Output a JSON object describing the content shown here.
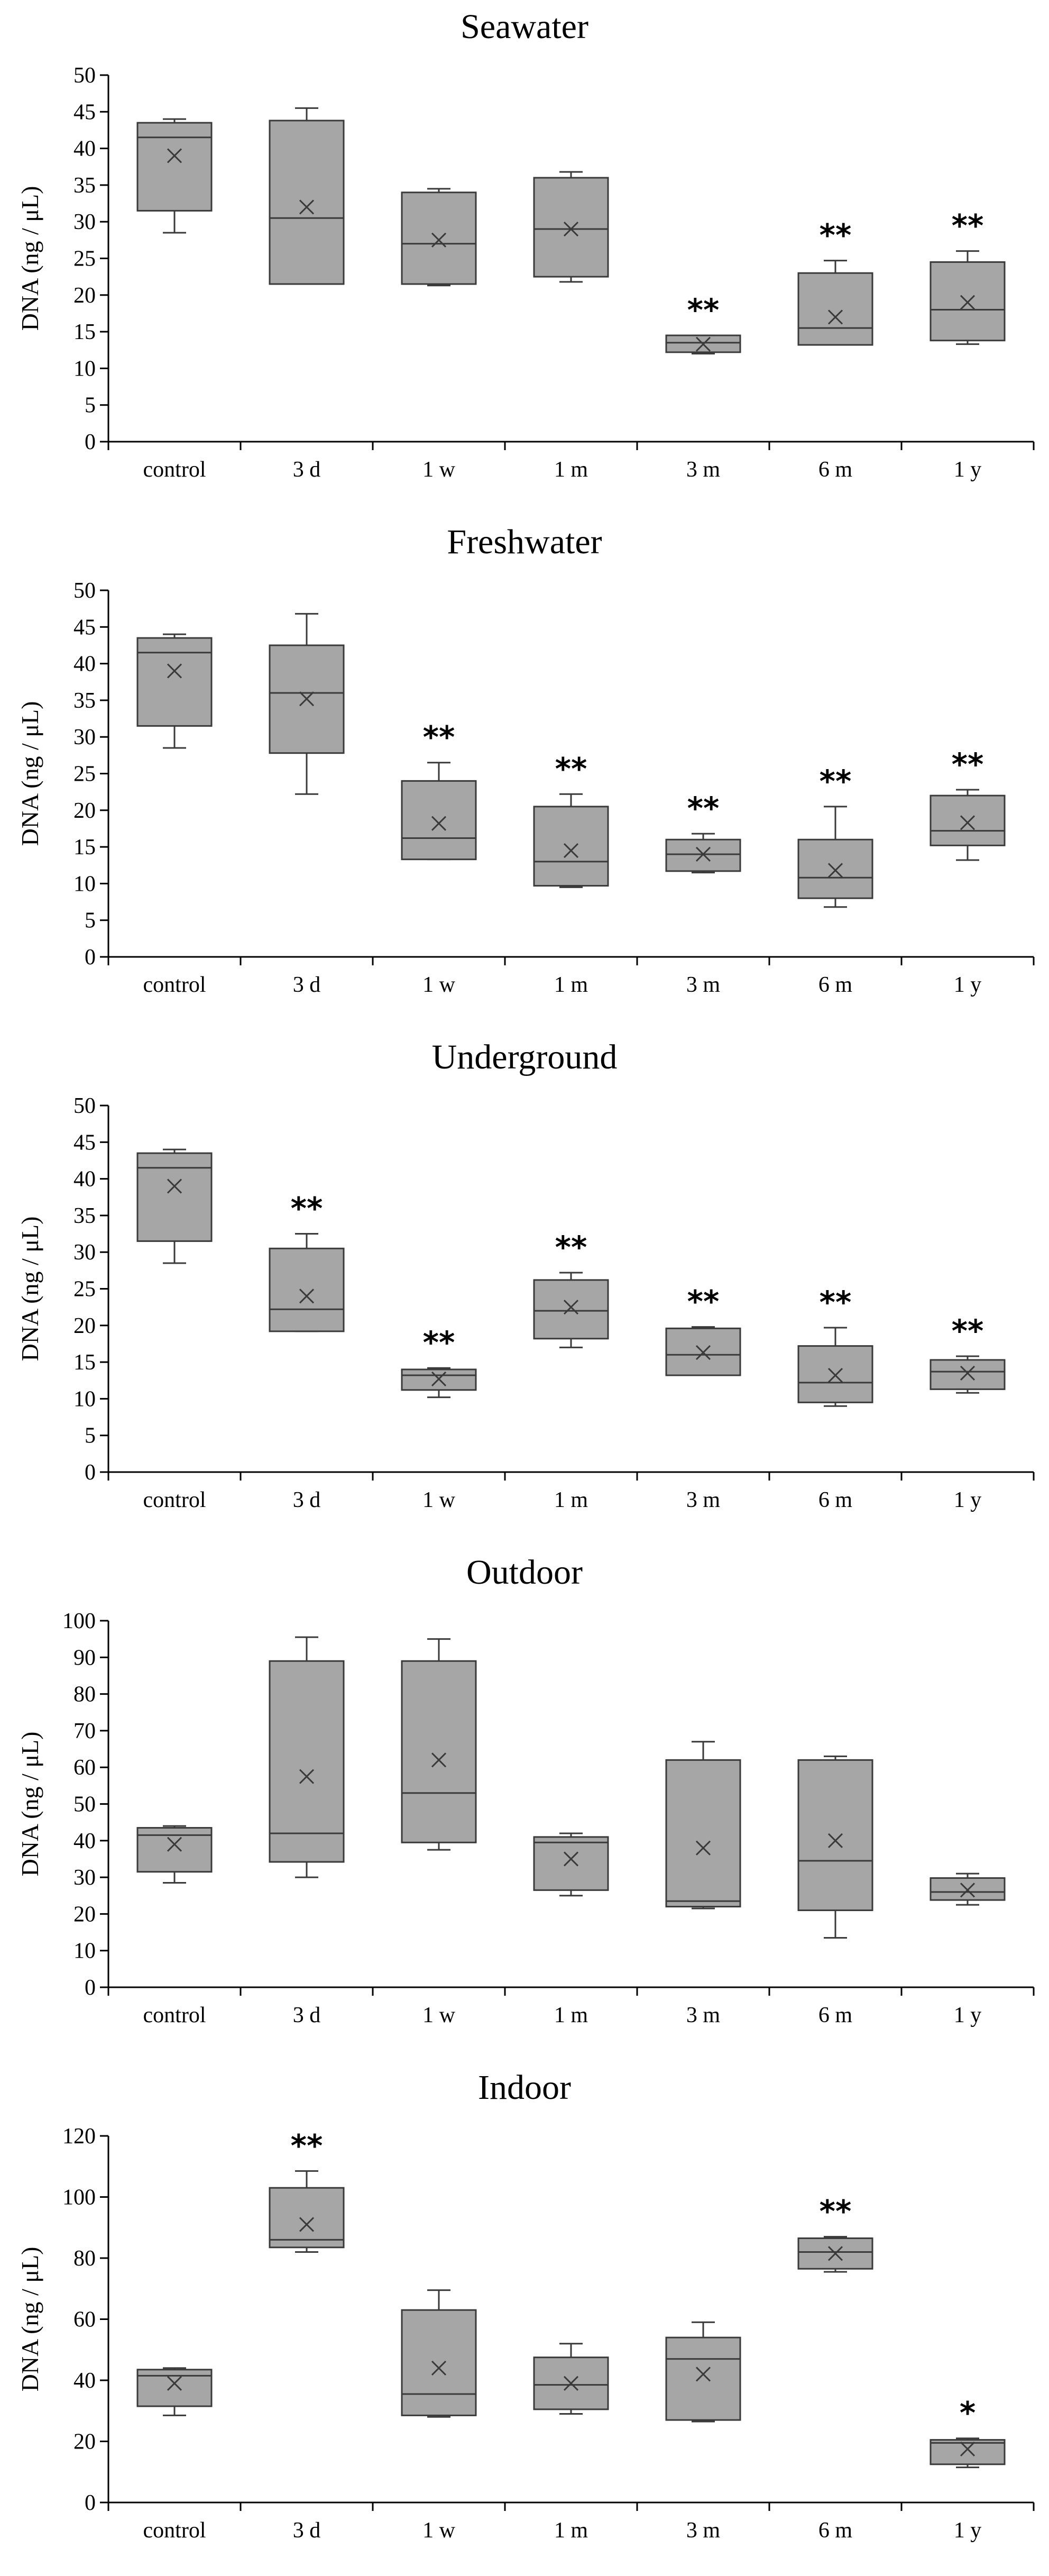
{
  "colors": {
    "box_fill": "#a6a6a6",
    "stroke": "#3a3a3a",
    "axis": "#000000",
    "background": "#ffffff"
  },
  "chart_data": [
    {
      "type": "box",
      "title": "Seawater",
      "xlabel": "",
      "ylabel": "DNA (ng / μL)",
      "ylim": [
        0,
        50
      ],
      "ytick_step": 5,
      "categories": [
        "control",
        "3 d",
        "1 w",
        "1 m",
        "3 m",
        "6 m",
        "1 y"
      ],
      "boxes": [
        {
          "min": 28.5,
          "q1": 31.5,
          "median": 41.5,
          "q3": 43.5,
          "max": 44,
          "mean": 39,
          "sig": ""
        },
        {
          "min": 21.5,
          "q1": 21.5,
          "median": 30.5,
          "q3": 43.8,
          "max": 45.5,
          "mean": 32,
          "sig": ""
        },
        {
          "min": 21.3,
          "q1": 21.5,
          "median": 27,
          "q3": 34,
          "max": 34.5,
          "mean": 27.5,
          "sig": ""
        },
        {
          "min": 21.8,
          "q1": 22.5,
          "median": 29,
          "q3": 36,
          "max": 36.8,
          "mean": 29,
          "sig": ""
        },
        {
          "min": 12,
          "q1": 12.2,
          "median": 13.5,
          "q3": 14.5,
          "max": 14.5,
          "mean": 13.3,
          "sig": "**"
        },
        {
          "min": 13.2,
          "q1": 13.2,
          "median": 15.5,
          "q3": 23,
          "max": 24.7,
          "mean": 17,
          "sig": "**"
        },
        {
          "min": 13.3,
          "q1": 13.8,
          "median": 18,
          "q3": 24.5,
          "max": 26,
          "mean": 19,
          "sig": "**"
        }
      ]
    },
    {
      "type": "box",
      "title": "Freshwater",
      "xlabel": "",
      "ylabel": "DNA (ng / μL)",
      "ylim": [
        0,
        50
      ],
      "ytick_step": 5,
      "categories": [
        "control",
        "3 d",
        "1 w",
        "1 m",
        "3 m",
        "6 m",
        "1 y"
      ],
      "boxes": [
        {
          "min": 28.5,
          "q1": 31.5,
          "median": 41.5,
          "q3": 43.5,
          "max": 44,
          "mean": 39,
          "sig": ""
        },
        {
          "min": 22.2,
          "q1": 27.8,
          "median": 36,
          "q3": 42.5,
          "max": 46.8,
          "mean": 35.2,
          "sig": ""
        },
        {
          "min": 13.3,
          "q1": 13.3,
          "median": 16.2,
          "q3": 24,
          "max": 26.5,
          "mean": 18.2,
          "sig": "**"
        },
        {
          "min": 9.5,
          "q1": 9.7,
          "median": 13,
          "q3": 20.5,
          "max": 22.2,
          "mean": 14.5,
          "sig": "**"
        },
        {
          "min": 11.5,
          "q1": 11.7,
          "median": 14,
          "q3": 16,
          "max": 16.8,
          "mean": 14,
          "sig": "**"
        },
        {
          "min": 6.8,
          "q1": 8,
          "median": 10.8,
          "q3": 16,
          "max": 20.5,
          "mean": 11.8,
          "sig": "**"
        },
        {
          "min": 13.2,
          "q1": 15.2,
          "median": 17.2,
          "q3": 22,
          "max": 22.8,
          "mean": 18.3,
          "sig": "**"
        }
      ]
    },
    {
      "type": "box",
      "title": "Underground",
      "xlabel": "",
      "ylabel": "DNA (ng / μL)",
      "ylim": [
        0,
        50
      ],
      "ytick_step": 5,
      "categories": [
        "control",
        "3 d",
        "1 w",
        "1 m",
        "3 m",
        "6 m",
        "1 y"
      ],
      "boxes": [
        {
          "min": 28.5,
          "q1": 31.5,
          "median": 41.5,
          "q3": 43.5,
          "max": 44,
          "mean": 39,
          "sig": ""
        },
        {
          "min": 19.2,
          "q1": 19.2,
          "median": 22.2,
          "q3": 30.5,
          "max": 32.5,
          "mean": 24,
          "sig": "**"
        },
        {
          "min": 10.2,
          "q1": 11.2,
          "median": 13.2,
          "q3": 14,
          "max": 14.2,
          "mean": 12.7,
          "sig": "**"
        },
        {
          "min": 17,
          "q1": 18.2,
          "median": 22,
          "q3": 26.2,
          "max": 27.2,
          "mean": 22.5,
          "sig": "**"
        },
        {
          "min": 13.2,
          "q1": 13.2,
          "median": 16,
          "q3": 19.6,
          "max": 19.8,
          "mean": 16.3,
          "sig": "**"
        },
        {
          "min": 9,
          "q1": 9.5,
          "median": 12.2,
          "q3": 17.2,
          "max": 19.7,
          "mean": 13.2,
          "sig": "**"
        },
        {
          "min": 10.8,
          "q1": 11.3,
          "median": 13.7,
          "q3": 15.3,
          "max": 15.8,
          "mean": 13.5,
          "sig": "**"
        }
      ]
    },
    {
      "type": "box",
      "title": "Outdoor",
      "xlabel": "",
      "ylabel": "DNA (ng / μL)",
      "ylim": [
        0,
        100
      ],
      "ytick_step": 10,
      "categories": [
        "control",
        "3 d",
        "1 w",
        "1 m",
        "3 m",
        "6 m",
        "1 y"
      ],
      "boxes": [
        {
          "min": 28.5,
          "q1": 31.5,
          "median": 41.5,
          "q3": 43.5,
          "max": 44,
          "mean": 39,
          "sig": ""
        },
        {
          "min": 30,
          "q1": 34.2,
          "median": 42,
          "q3": 89,
          "max": 95.5,
          "mean": 57.5,
          "sig": ""
        },
        {
          "min": 37.5,
          "q1": 39.5,
          "median": 53,
          "q3": 89,
          "max": 95,
          "mean": 62,
          "sig": ""
        },
        {
          "min": 25,
          "q1": 26.5,
          "median": 39.5,
          "q3": 41,
          "max": 42,
          "mean": 35,
          "sig": ""
        },
        {
          "min": 21.5,
          "q1": 22,
          "median": 23.5,
          "q3": 62,
          "max": 67,
          "mean": 38,
          "sig": ""
        },
        {
          "min": 13.5,
          "q1": 21,
          "median": 34.5,
          "q3": 62,
          "max": 63,
          "mean": 40,
          "sig": ""
        },
        {
          "min": 22.5,
          "q1": 23.8,
          "median": 26,
          "q3": 29.8,
          "max": 31,
          "mean": 26.5,
          "sig": ""
        }
      ]
    },
    {
      "type": "box",
      "title": "Indoor",
      "xlabel": "",
      "ylabel": "DNA (ng / μL)",
      "ylim": [
        0,
        120
      ],
      "ytick_step": 20,
      "categories": [
        "control",
        "3 d",
        "1 w",
        "1 m",
        "3 m",
        "6 m",
        "1 y"
      ],
      "boxes": [
        {
          "min": 28.5,
          "q1": 31.5,
          "median": 41.5,
          "q3": 43.5,
          "max": 44,
          "mean": 39,
          "sig": ""
        },
        {
          "min": 82,
          "q1": 83.5,
          "median": 86,
          "q3": 103,
          "max": 108.5,
          "mean": 91,
          "sig": "**"
        },
        {
          "min": 28,
          "q1": 28.5,
          "median": 35.5,
          "q3": 63,
          "max": 69.5,
          "mean": 44,
          "sig": ""
        },
        {
          "min": 29,
          "q1": 30.5,
          "median": 38.5,
          "q3": 47.5,
          "max": 52,
          "mean": 39,
          "sig": ""
        },
        {
          "min": 26.5,
          "q1": 27,
          "median": 47,
          "q3": 54,
          "max": 59,
          "mean": 42,
          "sig": ""
        },
        {
          "min": 75.5,
          "q1": 76.5,
          "median": 82,
          "q3": 86.5,
          "max": 87,
          "mean": 81.5,
          "sig": "**"
        },
        {
          "min": 11.5,
          "q1": 12.5,
          "median": 19.5,
          "q3": 20.5,
          "max": 21,
          "mean": 17.5,
          "sig": "*"
        }
      ]
    }
  ]
}
